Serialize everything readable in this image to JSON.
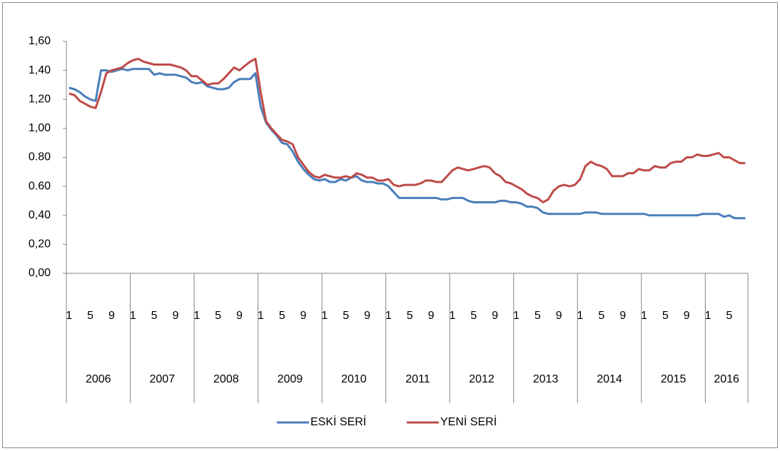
{
  "chart_data": {
    "type": "line",
    "categories": [
      "1",
      null,
      null,
      null,
      "5",
      null,
      null,
      null,
      "9",
      null,
      null,
      null,
      "1",
      null,
      null,
      null,
      "5",
      null,
      null,
      null,
      "9",
      null,
      null,
      null,
      "1",
      null,
      null,
      null,
      "5",
      null,
      null,
      null,
      "9",
      null,
      null,
      null,
      "1",
      null,
      null,
      null,
      "5",
      null,
      null,
      null,
      "9",
      null,
      null,
      null,
      "1",
      null,
      null,
      null,
      "5",
      null,
      null,
      null,
      "9",
      null,
      null,
      null,
      "1",
      null,
      null,
      null,
      "5",
      null,
      null,
      null,
      "9",
      null,
      null,
      null,
      "1",
      null,
      null,
      null,
      "5",
      null,
      null,
      null,
      "9",
      null,
      null,
      null,
      "1",
      null,
      null,
      null,
      "5",
      null,
      null,
      null,
      "9",
      null,
      null,
      null,
      "1",
      null,
      null,
      null,
      "5",
      null,
      null,
      null,
      "9",
      null,
      null,
      null,
      "1",
      null,
      null,
      null,
      "5",
      null,
      null,
      null,
      "9",
      null,
      null,
      null,
      "1",
      null,
      null,
      null,
      "5",
      null,
      null,
      null
    ],
    "year_groups": [
      "2006",
      "2007",
      "2008",
      "2009",
      "2010",
      "2011",
      "2012",
      "2013",
      "2014",
      "2015",
      "2016"
    ],
    "series": [
      {
        "name": "ESKİ SERİ",
        "color": "#4a7ebb",
        "values": [
          1.28,
          1.27,
          1.25,
          1.22,
          1.2,
          1.19,
          1.4,
          1.4,
          1.39,
          1.4,
          1.41,
          1.4,
          1.41,
          1.41,
          1.41,
          1.41,
          1.37,
          1.38,
          1.37,
          1.37,
          1.37,
          1.36,
          1.35,
          1.32,
          1.31,
          1.32,
          1.29,
          1.28,
          1.27,
          1.27,
          1.28,
          1.32,
          1.34,
          1.34,
          1.34,
          1.38,
          1.15,
          1.04,
          0.99,
          0.95,
          0.9,
          0.89,
          0.84,
          0.77,
          0.72,
          0.68,
          0.65,
          0.64,
          0.65,
          0.63,
          0.63,
          0.65,
          0.64,
          0.66,
          0.67,
          0.64,
          0.63,
          0.63,
          0.62,
          0.62,
          0.6,
          0.56,
          0.52,
          0.52,
          0.52,
          0.52,
          0.52,
          0.52,
          0.52,
          0.52,
          0.51,
          0.51,
          0.52,
          0.52,
          0.52,
          0.5,
          0.49,
          0.49,
          0.49,
          0.49,
          0.49,
          0.5,
          0.5,
          0.49,
          0.49,
          0.48,
          0.46,
          0.46,
          0.45,
          0.42,
          0.41,
          0.41,
          0.41,
          0.41,
          0.41,
          0.41,
          0.41,
          0.42,
          0.42,
          0.42,
          0.41,
          0.41,
          0.41,
          0.41,
          0.41,
          0.41,
          0.41,
          0.41,
          0.41,
          0.4,
          0.4,
          0.4,
          0.4,
          0.4,
          0.4,
          0.4,
          0.4,
          0.4,
          0.4,
          0.41,
          0.41,
          0.41,
          0.41,
          0.39,
          0.4,
          0.38,
          0.38,
          0.38
        ]
      },
      {
        "name": "YENİ SERİ",
        "color": "#be4b48",
        "values": [
          1.24,
          1.23,
          1.19,
          1.17,
          1.15,
          1.14,
          1.25,
          1.38,
          1.4,
          1.41,
          1.42,
          1.45,
          1.47,
          1.48,
          1.46,
          1.45,
          1.44,
          1.44,
          1.44,
          1.44,
          1.43,
          1.42,
          1.4,
          1.36,
          1.36,
          1.33,
          1.3,
          1.31,
          1.31,
          1.34,
          1.38,
          1.42,
          1.4,
          1.43,
          1.46,
          1.48,
          1.25,
          1.05,
          1.0,
          0.96,
          0.92,
          0.91,
          0.89,
          0.8,
          0.75,
          0.7,
          0.67,
          0.66,
          0.68,
          0.67,
          0.66,
          0.66,
          0.67,
          0.66,
          0.69,
          0.68,
          0.66,
          0.66,
          0.64,
          0.64,
          0.65,
          0.61,
          0.6,
          0.61,
          0.61,
          0.61,
          0.62,
          0.64,
          0.64,
          0.63,
          0.63,
          0.67,
          0.71,
          0.73,
          0.72,
          0.71,
          0.72,
          0.73,
          0.74,
          0.73,
          0.69,
          0.67,
          0.63,
          0.62,
          0.6,
          0.58,
          0.55,
          0.53,
          0.52,
          0.49,
          0.51,
          0.57,
          0.6,
          0.61,
          0.6,
          0.61,
          0.65,
          0.74,
          0.77,
          0.75,
          0.74,
          0.72,
          0.67,
          0.67,
          0.67,
          0.69,
          0.69,
          0.72,
          0.71,
          0.71,
          0.74,
          0.73,
          0.73,
          0.76,
          0.77,
          0.77,
          0.8,
          0.8,
          0.82,
          0.81,
          0.81,
          0.82,
          0.83,
          0.8,
          0.8,
          0.78,
          0.76,
          0.76
        ]
      }
    ],
    "ylim": [
      0,
      1.6
    ],
    "yticks": [
      {
        "value": 0,
        "label": "0,00"
      },
      {
        "value": 0.2,
        "label": "0,20"
      },
      {
        "value": 0.4,
        "label": "0,40"
      },
      {
        "value": 0.6,
        "label": "0.60"
      },
      {
        "value": 0.8,
        "label": "0.80"
      },
      {
        "value": 1.0,
        "label": "1,00"
      },
      {
        "value": 1.2,
        "label": "1,20"
      },
      {
        "value": 1.4,
        "label": "1,40"
      },
      {
        "value": 1.6,
        "label": "1,60"
      }
    ],
    "legend": "bottom"
  }
}
